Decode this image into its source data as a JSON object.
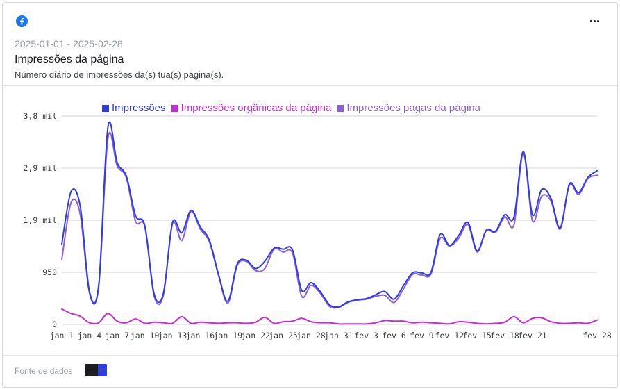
{
  "header": {
    "date_range": "2025-01-01 - 2025-02-28",
    "title": "Impressões da página",
    "subtitle": "Número diário de impressões da(s) tua(s) página(s).",
    "platform_icon": "facebook-icon",
    "menu_icon": "more-horizontal-icon"
  },
  "footer": {
    "data_source_label": "Fonte de dados"
  },
  "colors": {
    "impressions": "#2d3be8",
    "organic": "#c62bd4",
    "paid": "#8b5fd6",
    "gridline": "#d9dbe3"
  },
  "chart_data": {
    "type": "line",
    "title": "",
    "xlabel": "",
    "ylabel": "",
    "legend_position": "top",
    "grid": true,
    "ylim": [
      0,
      3800
    ],
    "y_ticks": [
      {
        "value": 0,
        "label": "0"
      },
      {
        "value": 950,
        "label": "950"
      },
      {
        "value": 1900,
        "label": "1,9 mil"
      },
      {
        "value": 2850,
        "label": "2,9 mil"
      },
      {
        "value": 3800,
        "label": "3,8 mil"
      }
    ],
    "x_tick_labels": [
      {
        "index": 0,
        "label": "jan 1"
      },
      {
        "index": 3,
        "label": "jan 4"
      },
      {
        "index": 6,
        "label": "jan 7"
      },
      {
        "index": 9,
        "label": "jan 10"
      },
      {
        "index": 12,
        "label": "jan 13"
      },
      {
        "index": 15,
        "label": "jan 16"
      },
      {
        "index": 18,
        "label": "jan 19"
      },
      {
        "index": 21,
        "label": "jan 22"
      },
      {
        "index": 24,
        "label": "jan 25"
      },
      {
        "index": 27,
        "label": "jan 28"
      },
      {
        "index": 30,
        "label": "jan 31"
      },
      {
        "index": 33,
        "label": "fev 3"
      },
      {
        "index": 36,
        "label": "fev 6"
      },
      {
        "index": 39,
        "label": "fev 9"
      },
      {
        "index": 42,
        "label": "fev 12"
      },
      {
        "index": 45,
        "label": "fev 15"
      },
      {
        "index": 48,
        "label": "fev 18"
      },
      {
        "index": 51,
        "label": "fev 21"
      },
      {
        "index": 58,
        "label": "fev 28"
      }
    ],
    "x": [
      "2025-01-01",
      "2025-01-02",
      "2025-01-03",
      "2025-01-04",
      "2025-01-05",
      "2025-01-06",
      "2025-01-07",
      "2025-01-08",
      "2025-01-09",
      "2025-01-10",
      "2025-01-11",
      "2025-01-12",
      "2025-01-13",
      "2025-01-14",
      "2025-01-15",
      "2025-01-16",
      "2025-01-17",
      "2025-01-18",
      "2025-01-19",
      "2025-01-20",
      "2025-01-21",
      "2025-01-22",
      "2025-01-23",
      "2025-01-24",
      "2025-01-25",
      "2025-01-26",
      "2025-01-27",
      "2025-01-28",
      "2025-01-29",
      "2025-01-30",
      "2025-01-31",
      "2025-02-01",
      "2025-02-02",
      "2025-02-03",
      "2025-02-04",
      "2025-02-05",
      "2025-02-06",
      "2025-02-07",
      "2025-02-08",
      "2025-02-09",
      "2025-02-10",
      "2025-02-11",
      "2025-02-12",
      "2025-02-13",
      "2025-02-14",
      "2025-02-15",
      "2025-02-16",
      "2025-02-17",
      "2025-02-18",
      "2025-02-19",
      "2025-02-20",
      "2025-02-21",
      "2025-02-22",
      "2025-02-23",
      "2025-02-24",
      "2025-02-25",
      "2025-02-26",
      "2025-02-27",
      "2025-02-28"
    ],
    "series": [
      {
        "name": "Impressões",
        "color": "#2d3be8",
        "values": [
          1460,
          2420,
          2150,
          600,
          720,
          3600,
          2950,
          2700,
          1980,
          1800,
          560,
          560,
          1860,
          1670,
          2080,
          1780,
          1530,
          900,
          420,
          1100,
          1170,
          1020,
          1150,
          1390,
          1370,
          1360,
          620,
          760,
          600,
          360,
          320,
          410,
          450,
          470,
          540,
          600,
          460,
          700,
          940,
          940,
          950,
          1640,
          1440,
          1620,
          1860,
          1340,
          1720,
          1700,
          2000,
          1960,
          3150,
          2000,
          2460,
          2300,
          1760,
          2560,
          2400,
          2680,
          2800
        ]
      },
      {
        "name": "Impressões orgânicas da página",
        "color": "#c62bd4",
        "values": [
          280,
          200,
          150,
          30,
          30,
          200,
          60,
          30,
          100,
          20,
          40,
          30,
          20,
          140,
          20,
          40,
          30,
          20,
          30,
          30,
          20,
          40,
          130,
          20,
          50,
          60,
          110,
          50,
          30,
          30,
          10,
          10,
          10,
          10,
          30,
          70,
          60,
          60,
          30,
          40,
          30,
          20,
          10,
          50,
          40,
          20,
          10,
          20,
          40,
          140,
          30,
          110,
          120,
          50,
          20,
          20,
          30,
          20,
          80
        ]
      },
      {
        "name": "Impressões pagas da página",
        "color": "#8b5fd6",
        "values": [
          1180,
          2220,
          2000,
          570,
          690,
          3400,
          2890,
          2670,
          1880,
          1780,
          520,
          530,
          1840,
          1530,
          2060,
          1740,
          1500,
          880,
          390,
          1070,
          1150,
          980,
          1020,
          1370,
          1320,
          1300,
          510,
          710,
          570,
          330,
          310,
          400,
          440,
          460,
          510,
          530,
          400,
          640,
          910,
          900,
          920,
          1570,
          1430,
          1570,
          1820,
          1320,
          1710,
          1680,
          1960,
          1820,
          3120,
          1890,
          2340,
          2250,
          1740,
          2540,
          2370,
          2660,
          2720
        ]
      }
    ]
  }
}
